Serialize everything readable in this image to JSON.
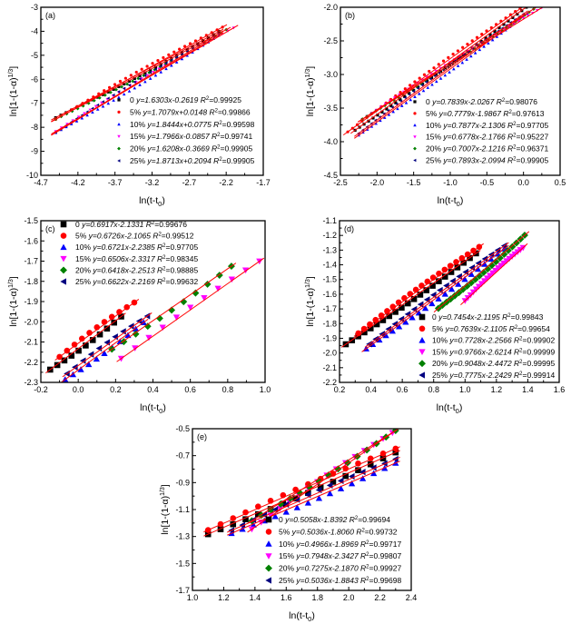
{
  "chart_data": [
    {
      "type": "scatter",
      "panel_label": "(a)",
      "xlabel": {
        "base": "ln(t-t",
        "sub": "0",
        "end": ")"
      },
      "ylabel": {
        "base": "ln[1-(1-α)",
        "sup": "1/3",
        "end": "]"
      },
      "xlim": [
        -4.7,
        -1.7
      ],
      "ylim": [
        -10,
        -3
      ],
      "xticks": [
        "-4.7",
        "-4.2",
        "-3.7",
        "-3.2",
        "-2.7",
        "-2.2",
        "-1.7"
      ],
      "yticks": [
        "-3",
        "-4",
        "-5",
        "-6",
        "-7",
        "-8",
        "-9",
        "-10"
      ],
      "marker_size": "small",
      "series": [
        {
          "name": "0",
          "equation": "y=1.6303x-0.2619",
          "r2": "0.99925",
          "slope": 1.6303,
          "intercept": -0.2619,
          "x_range": [
            -4.5,
            -2.3
          ]
        },
        {
          "name": "5%",
          "equation": "y=1.7079x+0.0148",
          "r2": "0.99866",
          "slope": 1.7079,
          "intercept": 0.0148,
          "x_range": [
            -4.5,
            -2.25
          ]
        },
        {
          "name": "10%",
          "equation": "y=1.8444x+0.0775",
          "r2": "0.99598",
          "slope": 1.8444,
          "intercept": 0.0775,
          "x_range": [
            -4.5,
            -2.3
          ]
        },
        {
          "name": "15%",
          "equation": "y=1.7966x-0.0857",
          "r2": "0.99741",
          "slope": 1.7966,
          "intercept": -0.0857,
          "x_range": [
            -4.5,
            -2.1
          ]
        },
        {
          "name": "20%",
          "equation": "y=1.6208x-0.3669",
          "r2": "0.99905",
          "slope": 1.6208,
          "intercept": -0.3669,
          "x_range": [
            -4.5,
            -2.2
          ]
        },
        {
          "name": "25%",
          "equation": "y=1.8713x+0.2094",
          "r2": "0.99905",
          "slope": 1.8713,
          "intercept": 0.2094,
          "x_range": [
            -4.5,
            -2.3
          ]
        }
      ]
    },
    {
      "type": "scatter",
      "panel_label": "(b)",
      "xlabel": {
        "base": "ln(t-t",
        "sub": "0",
        "end": ")"
      },
      "ylabel": {
        "base": "ln[1-(1-α)",
        "sup": "1/3",
        "end": "]"
      },
      "xlim": [
        -2.5,
        0.5
      ],
      "ylim": [
        -4.5,
        -2.0
      ],
      "xticks": [
        "-2.5",
        "-2.0",
        "-1.5",
        "-1.0",
        "-0.5",
        "0.0",
        "0.5"
      ],
      "yticks": [
        "-2.0",
        "-2.5",
        "-3.0",
        "-3.5",
        "-4.0",
        "-4.5"
      ],
      "marker_size": "small",
      "series": [
        {
          "name": "0",
          "equation": "y=0.7839x-2.0267",
          "r2": "0.98076",
          "slope": 0.7839,
          "intercept": -2.0267,
          "x_range": [
            -2.3,
            0.1
          ]
        },
        {
          "name": "5%",
          "equation": "y=0.7779x-1.9867",
          "r2": "0.97613",
          "slope": 0.7779,
          "intercept": -1.9867,
          "x_range": [
            -2.4,
            0.15
          ]
        },
        {
          "name": "10%",
          "equation": "y=0.7877x-2.1306",
          "r2": "0.97705",
          "slope": 0.7877,
          "intercept": -2.1306,
          "x_range": [
            -2.25,
            0.05
          ]
        },
        {
          "name": "15%",
          "equation": "y=0.6778x-2.1766",
          "r2": "0.95227",
          "slope": 0.6778,
          "intercept": -2.1766,
          "x_range": [
            -2.2,
            0.25
          ]
        },
        {
          "name": "20%",
          "equation": "y=0.7007x-2.1216",
          "r2": "0.96371",
          "slope": 0.7007,
          "intercept": -2.1216,
          "x_range": [
            -2.2,
            0.2
          ]
        },
        {
          "name": "25%",
          "equation": "y=0.7893x-2.0994",
          "r2": "0.99905",
          "slope": 0.7893,
          "intercept": -2.0994,
          "x_range": [
            -2.25,
            0.0
          ]
        }
      ]
    },
    {
      "type": "scatter",
      "panel_label": "(c)",
      "xlabel": {
        "base": "ln(t-t",
        "sub": "0",
        "end": ")"
      },
      "ylabel": {
        "base": "ln[1-(1-α)",
        "sup": "1/3",
        "end": "]"
      },
      "xlim": [
        -0.2,
        1.0
      ],
      "ylim": [
        -2.3,
        -1.5
      ],
      "xticks": [
        "-0.2",
        "0.0",
        "0.2",
        "0.4",
        "0.6",
        "0.8",
        "1.0"
      ],
      "yticks": [
        "-1.5",
        "-1.6",
        "-1.7",
        "-1.8",
        "-1.9",
        "-2.0",
        "-2.1",
        "-2.2",
        "-2.3"
      ],
      "marker_size": "large",
      "series": [
        {
          "name": "0",
          "equation": "y=0.6917x-2.1331",
          "r2": "0.99676",
          "slope": 0.6917,
          "intercept": -2.1331,
          "x_range": [
            -0.15,
            0.23
          ]
        },
        {
          "name": "5%",
          "equation": "y=0.6726x-2.1065",
          "r2": "0.99512",
          "slope": 0.6726,
          "intercept": -2.1065,
          "x_range": [
            -0.1,
            0.3
          ]
        },
        {
          "name": "10%",
          "equation": "y=0.6721x-2.2385",
          "r2": "0.97705",
          "slope": 0.6721,
          "intercept": -2.2385,
          "x_range": [
            -0.07,
            0.35
          ]
        },
        {
          "name": "15%",
          "equation": "y=0.6506x-2.3317",
          "r2": "0.98345",
          "slope": 0.6506,
          "intercept": -2.3317,
          "x_range": [
            0.23,
            0.97
          ]
        },
        {
          "name": "20%",
          "equation": "y=0.6418x-2.2513",
          "r2": "0.98885",
          "slope": 0.6418,
          "intercept": -2.2513,
          "x_range": [
            0.18,
            0.82
          ]
        },
        {
          "name": "25%",
          "equation": "y=0.6622x-2.2169",
          "r2": "0.99632",
          "slope": 0.6622,
          "intercept": -2.2169,
          "x_range": [
            -0.06,
            0.37
          ]
        }
      ]
    },
    {
      "type": "scatter",
      "panel_label": "(d)",
      "xlabel": {
        "base": "ln(t-t",
        "sub": "0",
        "end": ")"
      },
      "ylabel": {
        "base": "ln[1-(1-α)",
        "sup": "1/3",
        "end": "]"
      },
      "xlim": [
        0.2,
        1.6
      ],
      "ylim": [
        -2.2,
        -1.1
      ],
      "xticks": [
        "0.2",
        "0.4",
        "0.6",
        "0.8",
        "1.0",
        "1.2",
        "1.4",
        "1.6"
      ],
      "yticks": [
        "-1.1",
        "-1.2",
        "-1.3",
        "-1.4",
        "-1.5",
        "-1.6",
        "-1.7",
        "-1.8",
        "-1.9",
        "-2.0",
        "-2.1",
        "-2.2"
      ],
      "marker_size": "large",
      "series": [
        {
          "name": "0",
          "equation": "y=0.7454x-2.1195",
          "r2": "0.99843",
          "slope": 0.7454,
          "intercept": -2.1195,
          "x_range": [
            0.24,
            1.07
          ]
        },
        {
          "name": "5%",
          "equation": "y=0.7639x-2.1105",
          "r2": "0.99654",
          "slope": 0.7639,
          "intercept": -2.1105,
          "x_range": [
            0.32,
            1.09
          ]
        },
        {
          "name": "10%",
          "equation": "y=0.7728x-2.2566",
          "r2": "0.99902",
          "slope": 0.7728,
          "intercept": -2.2566,
          "x_range": [
            0.37,
            1.25
          ]
        },
        {
          "name": "15%",
          "equation": "y=0.9766x-2.6214",
          "r2": "0.99999",
          "slope": 0.9766,
          "intercept": -2.6214,
          "x_range": [
            1.0,
            1.37
          ]
        },
        {
          "name": "20%",
          "equation": "y=0.9048x-2.4472",
          "r2": "0.99995",
          "slope": 0.9048,
          "intercept": -2.4472,
          "x_range": [
            0.83,
            1.38
          ]
        },
        {
          "name": "25%",
          "equation": "y=0.7775x-2.2429",
          "r2": "0.99914",
          "slope": 0.7775,
          "intercept": -2.2429,
          "x_range": [
            0.39,
            1.25
          ]
        }
      ]
    },
    {
      "type": "scatter",
      "panel_label": "(e)",
      "xlabel": {
        "base": "ln(t-t",
        "sub": "0",
        "end": ")"
      },
      "ylabel": {
        "base": "ln[1-(1-α)",
        "sup": "1/3",
        "end": "]"
      },
      "xlim": [
        1.0,
        2.4
      ],
      "ylim": [
        -1.7,
        -0.5
      ],
      "xticks": [
        "1.0",
        "1.2",
        "1.4",
        "1.6",
        "1.8",
        "2.0",
        "2.2",
        "2.4"
      ],
      "yticks": [
        "-0.5",
        "-0.7",
        "-0.9",
        "-1.1",
        "-1.3",
        "-1.5",
        "-1.7"
      ],
      "marker_size": "large",
      "series": [
        {
          "name": "0",
          "equation": "y=0.5058x-1.8392",
          "r2": "0.99694",
          "slope": 0.5058,
          "intercept": -1.8392,
          "x_range": [
            1.1,
            2.3
          ]
        },
        {
          "name": "5%",
          "equation": "y=0.5036x-1.8060",
          "r2": "0.99732",
          "slope": 0.5036,
          "intercept": -1.806,
          "x_range": [
            1.1,
            2.3
          ]
        },
        {
          "name": "10%",
          "equation": "y=0.4966x-1.8969",
          "r2": "0.99717",
          "slope": 0.4966,
          "intercept": -1.8969,
          "x_range": [
            1.25,
            2.3
          ]
        },
        {
          "name": "15%",
          "equation": "y=0.7948x-2.3427",
          "r2": "0.99807",
          "slope": 0.7948,
          "intercept": -2.3427,
          "x_range": [
            1.38,
            2.28
          ]
        },
        {
          "name": "20%",
          "equation": "y=0.7275x-2.1870",
          "r2": "0.99927",
          "slope": 0.7275,
          "intercept": -2.187,
          "x_range": [
            1.38,
            2.3
          ]
        },
        {
          "name": "25%",
          "equation": "y=0.5036x-1.8843",
          "r2": "0.99698",
          "slope": 0.5036,
          "intercept": -1.8843,
          "x_range": [
            1.25,
            2.3
          ]
        }
      ]
    }
  ],
  "series_style": {
    "colors": [
      "#000000",
      "#ff0000",
      "#0000ff",
      "#ff00ff",
      "#008000",
      "#000080"
    ],
    "markers": [
      "square",
      "circle",
      "triangle-up",
      "triangle-down",
      "diamond",
      "triangle-left"
    ],
    "fit_line_color": "#ff0000"
  }
}
